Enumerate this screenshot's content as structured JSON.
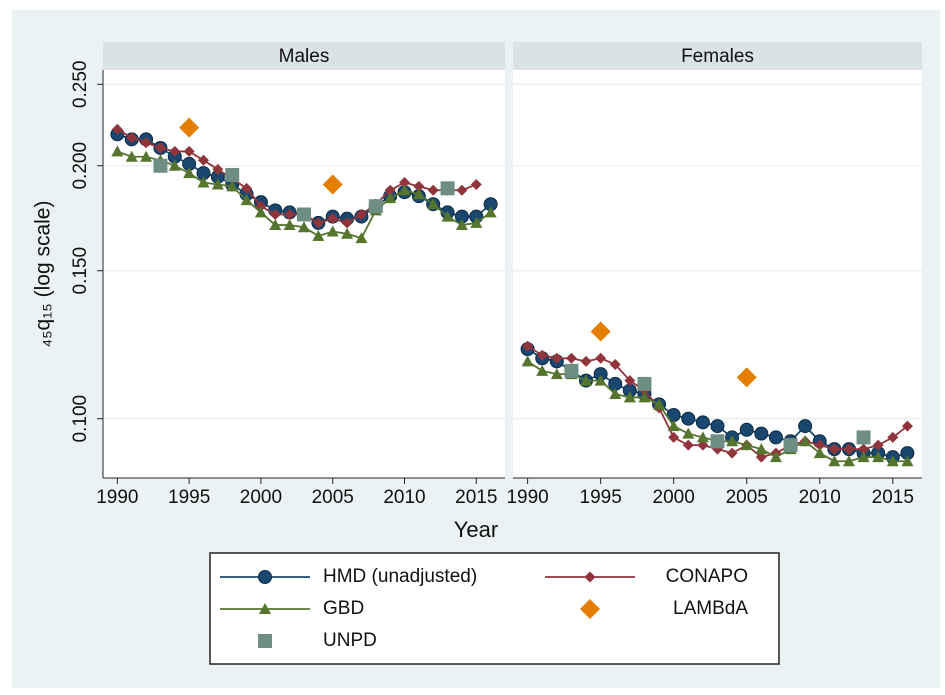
{
  "chart_data": [
    {
      "type": "line",
      "title": "Males",
      "y_label": "₄₅q₁₅ (log scale)",
      "x_label": "Year",
      "log_y": true,
      "grid": true,
      "xlim": [
        1989,
        2017
      ],
      "xticks": [
        1990,
        1995,
        2000,
        2005,
        2010,
        2015
      ],
      "ylim": [
        0.085,
        0.26
      ],
      "yticks": [
        {
          "value": 0.1,
          "label": "0.100"
        },
        {
          "value": 0.15,
          "label": "0.150"
        },
        {
          "value": 0.2,
          "label": "0.200"
        },
        {
          "value": 0.25,
          "label": "0.250"
        }
      ],
      "series": [
        {
          "name": "HMD (unadjusted)",
          "color": "#1a476f",
          "marker": "circle",
          "line": true,
          "x": [
            1990,
            1991,
            1992,
            1993,
            1994,
            1995,
            1996,
            1997,
            1998,
            1999,
            2000,
            2001,
            2002,
            2003,
            2004,
            2005,
            2006,
            2007,
            2008,
            2009,
            2010,
            2011,
            2012,
            2013,
            2014,
            2015,
            2016
          ],
          "values": [
            0.218,
            0.215,
            0.215,
            0.21,
            0.205,
            0.201,
            0.196,
            0.194,
            0.19,
            0.185,
            0.181,
            0.177,
            0.176,
            0.175,
            0.171,
            0.174,
            0.173,
            0.174,
            0.179,
            0.184,
            0.186,
            0.184,
            0.18,
            0.176,
            0.174,
            0.174,
            0.18
          ]
        },
        {
          "name": "CONAPO",
          "color": "#90353b",
          "marker": "diamond",
          "line": true,
          "x": [
            1990,
            1991,
            1992,
            1993,
            1994,
            1995,
            1996,
            1997,
            1998,
            1999,
            2000,
            2001,
            2002,
            2003,
            2004,
            2005,
            2006,
            2007,
            2008,
            2009,
            2010,
            2011,
            2012,
            2013,
            2014,
            2015
          ],
          "values": [
            0.221,
            0.216,
            0.213,
            0.21,
            0.208,
            0.208,
            0.203,
            0.198,
            0.193,
            0.188,
            0.179,
            0.175,
            0.175,
            0.175,
            0.171,
            0.173,
            0.171,
            0.175,
            0.18,
            0.187,
            0.191,
            0.189,
            0.187,
            0.187,
            0.187,
            0.19
          ]
        },
        {
          "name": "GBD",
          "color": "#55752f",
          "marker": "triangle",
          "line": true,
          "x": [
            1990,
            1991,
            1992,
            1993,
            1994,
            1995,
            1996,
            1997,
            1998,
            1999,
            2000,
            2001,
            2002,
            2003,
            2004,
            2005,
            2006,
            2007,
            2008,
            2009,
            2010,
            2011,
            2012,
            2013,
            2014,
            2015,
            2016
          ],
          "values": [
            0.208,
            0.205,
            0.205,
            0.203,
            0.2,
            0.196,
            0.191,
            0.19,
            0.189,
            0.182,
            0.176,
            0.17,
            0.17,
            0.169,
            0.165,
            0.167,
            0.166,
            0.164,
            0.177,
            0.183,
            0.187,
            0.185,
            0.18,
            0.174,
            0.17,
            0.171,
            0.176
          ]
        },
        {
          "name": "LAMBdA",
          "color": "#e37e00",
          "marker": "big-diamond",
          "line": false,
          "x": [
            1995,
            2005
          ],
          "values": [
            0.222,
            0.19
          ]
        },
        {
          "name": "UNPD",
          "color": "#6e8e84",
          "marker": "square",
          "line": false,
          "x": [
            1993,
            1998,
            2003,
            2008,
            2013
          ],
          "values": [
            0.2,
            0.195,
            0.175,
            0.179,
            0.188
          ]
        }
      ]
    },
    {
      "type": "line",
      "title": "Females",
      "xlim": [
        1989,
        2017
      ],
      "xticks": [
        1990,
        1995,
        2000,
        2005,
        2010,
        2015
      ],
      "series": [
        {
          "color": "#1a476f",
          "marker": "circle",
          "line": true,
          "x": [
            1990,
            1991,
            1992,
            1993,
            1994,
            1995,
            1996,
            1997,
            1998,
            1999,
            2000,
            2001,
            2002,
            2003,
            2004,
            2005,
            2006,
            2007,
            2008,
            2009,
            2010,
            2011,
            2012,
            2013,
            2014,
            2015,
            2016
          ],
          "values": [
            0.121,
            0.118,
            0.117,
            0.114,
            0.111,
            0.113,
            0.11,
            0.108,
            0.107,
            0.104,
            0.101,
            0.1,
            0.099,
            0.098,
            0.095,
            0.097,
            0.096,
            0.095,
            0.094,
            0.098,
            0.094,
            0.092,
            0.092,
            0.091,
            0.091,
            0.09,
            0.091
          ]
        },
        {
          "color": "#90353b",
          "marker": "diamond",
          "line": true,
          "x": [
            1990,
            1991,
            1992,
            1993,
            1994,
            1995,
            1996,
            1997,
            1998,
            1999,
            2000,
            2001,
            2002,
            2003,
            2004,
            2005,
            2006,
            2007,
            2008,
            2009,
            2010,
            2011,
            2012,
            2013,
            2014,
            2015,
            2016
          ],
          "values": [
            0.122,
            0.119,
            0.118,
            0.118,
            0.117,
            0.118,
            0.116,
            0.111,
            0.108,
            0.103,
            0.095,
            0.093,
            0.093,
            0.092,
            0.091,
            0.093,
            0.09,
            0.091,
            0.093,
            0.094,
            0.093,
            0.092,
            0.092,
            0.092,
            0.093,
            0.095,
            0.098
          ]
        },
        {
          "color": "#55752f",
          "marker": "triangle",
          "line": true,
          "x": [
            1990,
            1991,
            1992,
            1993,
            1994,
            1995,
            1996,
            1997,
            1998,
            1999,
            2000,
            2001,
            2002,
            2003,
            2004,
            2005,
            2006,
            2007,
            2008,
            2009,
            2010,
            2011,
            2012,
            2013,
            2014,
            2015,
            2016
          ],
          "values": [
            0.117,
            0.114,
            0.113,
            0.113,
            0.111,
            0.111,
            0.107,
            0.106,
            0.106,
            0.104,
            0.098,
            0.096,
            0.095,
            0.094,
            0.094,
            0.093,
            0.092,
            0.09,
            0.092,
            0.094,
            0.091,
            0.089,
            0.089,
            0.09,
            0.09,
            0.089,
            0.089
          ]
        },
        {
          "color": "#e37e00",
          "marker": "big-diamond",
          "line": false,
          "x": [
            1995,
            2005
          ],
          "values": [
            0.127,
            0.112
          ]
        },
        {
          "color": "#6e8e84",
          "marker": "square",
          "line": false,
          "x": [
            1993,
            1998,
            2003,
            2008,
            2013
          ],
          "values": [
            0.114,
            0.11,
            0.094,
            0.093,
            0.095
          ]
        }
      ]
    }
  ]
}
